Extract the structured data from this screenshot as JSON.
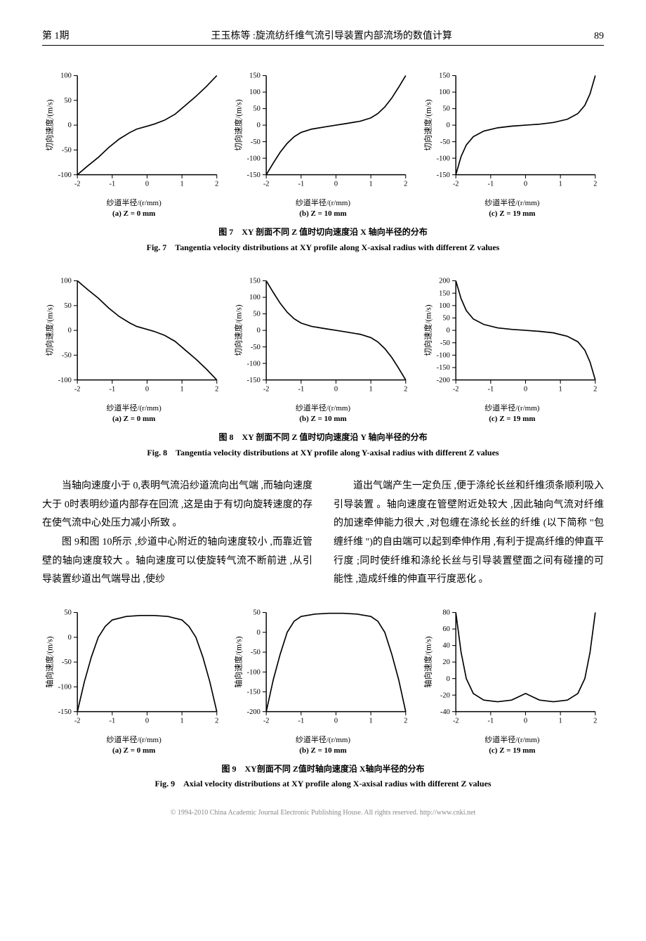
{
  "header": {
    "issue": "第 1期",
    "title": "王玉栋等 :旋流纺纤维气流引导装置内部流场的数值计算",
    "page": "89"
  },
  "figures": {
    "fig7": {
      "caption_cn": "图 7　XY 剖面不同 Z 值时切向速度沿 X 轴向半径的分布",
      "caption_en": "Fig. 7　Tangentia velocity distributions at XY profile along X-axisal radius with different Z values",
      "ylabel": "切向速度/(m/s)",
      "xlabel": "纱道半径/(r/mm)",
      "subplots": [
        {
          "id": "(a)  Z = 0 mm",
          "xlim": [
            -2,
            2
          ],
          "ylim": [
            -100,
            100
          ],
          "ytick_step": 50,
          "data": [
            [
              -2,
              -100
            ],
            [
              -1.7,
              -82
            ],
            [
              -1.4,
              -65
            ],
            [
              -1.1,
              -45
            ],
            [
              -0.8,
              -28
            ],
            [
              -0.5,
              -15
            ],
            [
              -0.3,
              -8
            ],
            [
              0,
              -2
            ],
            [
              0.2,
              2
            ],
            [
              0.5,
              10
            ],
            [
              0.8,
              22
            ],
            [
              1.1,
              40
            ],
            [
              1.4,
              58
            ],
            [
              1.7,
              78
            ],
            [
              2,
              100
            ]
          ]
        },
        {
          "id": "(b)  Z = 10 mm",
          "xlim": [
            -2,
            2
          ],
          "ylim": [
            -150,
            150
          ],
          "ytick_step": 50,
          "data": [
            [
              -2,
              -150
            ],
            [
              -1.8,
              -115
            ],
            [
              -1.6,
              -82
            ],
            [
              -1.4,
              -55
            ],
            [
              -1.2,
              -35
            ],
            [
              -1,
              -22
            ],
            [
              -0.7,
              -12
            ],
            [
              -0.3,
              -5
            ],
            [
              0,
              0
            ],
            [
              0.3,
              5
            ],
            [
              0.7,
              12
            ],
            [
              1,
              22
            ],
            [
              1.2,
              35
            ],
            [
              1.4,
              55
            ],
            [
              1.6,
              82
            ],
            [
              1.8,
              115
            ],
            [
              2,
              150
            ]
          ]
        },
        {
          "id": "(c)  Z = 19 mm",
          "xlim": [
            -2,
            2
          ],
          "ylim": [
            -150,
            150
          ],
          "ytick_step": 50,
          "data": [
            [
              -2,
              -150
            ],
            [
              -1.85,
              -95
            ],
            [
              -1.7,
              -60
            ],
            [
              -1.5,
              -35
            ],
            [
              -1.2,
              -18
            ],
            [
              -0.8,
              -8
            ],
            [
              -0.4,
              -3
            ],
            [
              0,
              0
            ],
            [
              0.4,
              3
            ],
            [
              0.8,
              8
            ],
            [
              1.2,
              18
            ],
            [
              1.5,
              35
            ],
            [
              1.7,
              60
            ],
            [
              1.85,
              95
            ],
            [
              2,
              150
            ]
          ]
        }
      ]
    },
    "fig8": {
      "caption_cn": "图 8　XY 剖面不同 Z 值时切向速度沿 Y 轴向半径的分布",
      "caption_en": "Fig. 8　Tangentia velocity distributions at XY profile along Y-axisal radius with different Z values",
      "ylabel": "切向速度/(m/s)",
      "xlabel": "纱道半径/(r/mm)",
      "subplots": [
        {
          "id": "(a)  Z = 0 mm",
          "xlim": [
            -2,
            2
          ],
          "ylim": [
            -100,
            100
          ],
          "ytick_step": 50,
          "data": [
            [
              -2,
              100
            ],
            [
              -1.7,
              82
            ],
            [
              -1.4,
              65
            ],
            [
              -1.1,
              45
            ],
            [
              -0.8,
              28
            ],
            [
              -0.5,
              15
            ],
            [
              -0.3,
              8
            ],
            [
              0,
              2
            ],
            [
              0.2,
              -2
            ],
            [
              0.5,
              -10
            ],
            [
              0.8,
              -22
            ],
            [
              1.1,
              -40
            ],
            [
              1.4,
              -58
            ],
            [
              1.7,
              -78
            ],
            [
              2,
              -100
            ]
          ]
        },
        {
          "id": "(b)  Z = 10 mm",
          "xlim": [
            -2,
            2
          ],
          "ylim": [
            -150,
            150
          ],
          "ytick_step": 50,
          "data": [
            [
              -2,
              150
            ],
            [
              -1.8,
              115
            ],
            [
              -1.6,
              82
            ],
            [
              -1.4,
              55
            ],
            [
              -1.2,
              35
            ],
            [
              -1,
              22
            ],
            [
              -0.7,
              12
            ],
            [
              -0.3,
              5
            ],
            [
              0,
              0
            ],
            [
              0.3,
              -5
            ],
            [
              0.7,
              -12
            ],
            [
              1,
              -22
            ],
            [
              1.2,
              -35
            ],
            [
              1.4,
              -55
            ],
            [
              1.6,
              -82
            ],
            [
              1.8,
              -115
            ],
            [
              2,
              -150
            ]
          ]
        },
        {
          "id": "(c)  Z = 19 mm",
          "xlim": [
            -2,
            2
          ],
          "ylim": [
            -200,
            200
          ],
          "ytick_step": 50,
          "data": [
            [
              -2,
              200
            ],
            [
              -1.85,
              128
            ],
            [
              -1.7,
              80
            ],
            [
              -1.5,
              46
            ],
            [
              -1.2,
              24
            ],
            [
              -0.8,
              10
            ],
            [
              -0.4,
              4
            ],
            [
              0,
              0
            ],
            [
              0.4,
              -4
            ],
            [
              0.8,
              -10
            ],
            [
              1.2,
              -24
            ],
            [
              1.5,
              -46
            ],
            [
              1.7,
              -80
            ],
            [
              1.85,
              -128
            ],
            [
              2,
              -200
            ]
          ]
        }
      ]
    },
    "fig9": {
      "caption_cn": "图 9　XY剖面不同 Z值时轴向速度沿 X轴向半径的分布",
      "caption_en": "Fig. 9　Axial velocity distributions at XY profile along X-axisal radius with different Z values",
      "ylabel": "轴向速度/(m/s)",
      "xlabel": "纱道半径/(r/mm)",
      "subplots": [
        {
          "id": "(a)  Z = 0 mm",
          "xlim": [
            -2,
            2
          ],
          "ylim": [
            -150,
            50
          ],
          "ytick_step": 50,
          "data": [
            [
              -2,
              -150
            ],
            [
              -1.8,
              -90
            ],
            [
              -1.6,
              -40
            ],
            [
              -1.4,
              0
            ],
            [
              -1.2,
              22
            ],
            [
              -1,
              35
            ],
            [
              -0.6,
              42
            ],
            [
              -0.2,
              44
            ],
            [
              0.2,
              44
            ],
            [
              0.6,
              42
            ],
            [
              1,
              35
            ],
            [
              1.2,
              22
            ],
            [
              1.4,
              0
            ],
            [
              1.6,
              -40
            ],
            [
              1.8,
              -90
            ],
            [
              2,
              -150
            ]
          ]
        },
        {
          "id": "(b)  Z = 10 mm",
          "xlim": [
            -2,
            2
          ],
          "ylim": [
            -200,
            50
          ],
          "ytick_step": 50,
          "data": [
            [
              -2,
              -200
            ],
            [
              -1.8,
              -120
            ],
            [
              -1.6,
              -55
            ],
            [
              -1.4,
              0
            ],
            [
              -1.2,
              28
            ],
            [
              -1,
              40
            ],
            [
              -0.6,
              46
            ],
            [
              -0.2,
              48
            ],
            [
              0.2,
              48
            ],
            [
              0.6,
              46
            ],
            [
              1,
              40
            ],
            [
              1.2,
              28
            ],
            [
              1.4,
              0
            ],
            [
              1.6,
              -55
            ],
            [
              1.8,
              -120
            ],
            [
              2,
              -200
            ]
          ]
        },
        {
          "id": "(c)  Z = 19 mm",
          "xlim": [
            -2,
            2
          ],
          "ylim": [
            -40,
            80
          ],
          "ytick_step": 20,
          "data": [
            [
              -2,
              80
            ],
            [
              -1.85,
              32
            ],
            [
              -1.7,
              0
            ],
            [
              -1.5,
              -18
            ],
            [
              -1.2,
              -26
            ],
            [
              -0.8,
              -28
            ],
            [
              -0.4,
              -26
            ],
            [
              -0.2,
              -22
            ],
            [
              0,
              -18
            ],
            [
              0.2,
              -22
            ],
            [
              0.4,
              -26
            ],
            [
              0.8,
              -28
            ],
            [
              1.2,
              -26
            ],
            [
              1.5,
              -18
            ],
            [
              1.7,
              0
            ],
            [
              1.85,
              32
            ],
            [
              2,
              80
            ]
          ]
        }
      ]
    }
  },
  "paragraphs": {
    "p1": "当轴向速度小于 0,表明气流沿纱道流向出气端 ,而轴向速度大于 0时表明纱道内部存在回流 ,这是由于有切向旋转速度的存在使气流中心处压力减小所致 。",
    "p2": "图 9和图 10所示 ,纱道中心附近的轴向速度较小 ,而靠近管壁的轴向速度较大 。轴向速度可以使旋转气流不断前进 ,从引导装置纱道出气端导出 ,使纱",
    "p3": "道出气端产生一定负压 ,便于涤纶长丝和纤维须条顺利吸入引导装置 。轴向速度在管壁附近处较大 ,因此轴向气流对纤维的加速牵伸能力很大 ,对包缠在涤纶长丝的纤维 (以下简称 \"包缠纤维 \")的自由端可以起到牵伸作用 ,有利于提高纤维的伸直平行度 ;同时使纤维和涤纶长丝与引导装置壁面之间有碰撞的可能性 ,造成纤维的伸直平行度恶化 。"
  },
  "footer": {
    "text": "© 1994-2010 China Academic Journal Electronic Publishing House. All rights reserved.    http://www.cnki.net"
  },
  "style": {
    "line_color": "#000000",
    "line_width": 1.6,
    "axis_color": "#000000",
    "tick_fontsize": 10,
    "bg": "#ffffff"
  }
}
